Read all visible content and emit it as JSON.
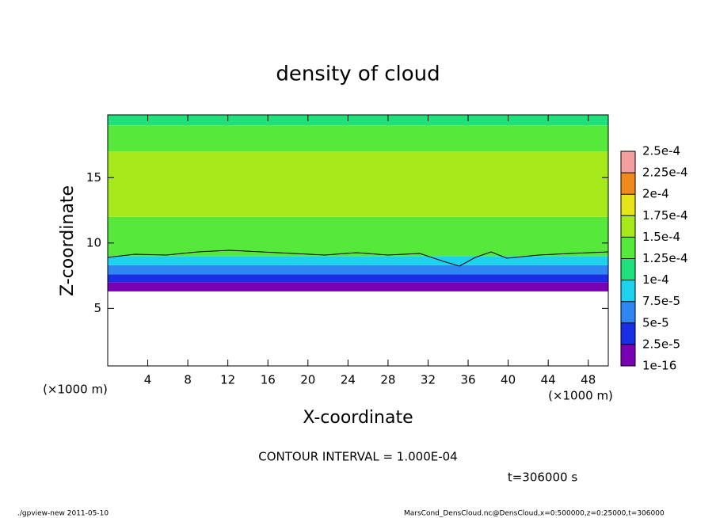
{
  "chart_data": {
    "type": "contour",
    "title": "density of cloud",
    "x_label": "X-coordinate",
    "y_label": "Z-coordinate",
    "x_unit": "(×1000 m)",
    "y_unit": "(×1000 m)",
    "xlim": [
      0,
      50
    ],
    "ylim": [
      0.6,
      19.8
    ],
    "xticks": [
      4,
      8,
      12,
      16,
      20,
      24,
      28,
      32,
      36,
      40,
      44,
      48
    ],
    "yticks": [
      5,
      10,
      15
    ],
    "z_edges": [
      6.3,
      7.0,
      7.6,
      8.3,
      9.0,
      12.0,
      17.0,
      19.0,
      19.8
    ],
    "values": [
      1e-05,
      3.5e-05,
      6e-05,
      9e-05,
      0.000145,
      0.000155,
      0.00014,
      0.00011
    ],
    "colorbar": {
      "ticks": [
        {
          "value": 1e-16,
          "label": "1e-16"
        },
        {
          "value": 2.5e-05,
          "label": "2.5e-5"
        },
        {
          "value": 5e-05,
          "label": "5e-5"
        },
        {
          "value": 7.5e-05,
          "label": "7.5e-5"
        },
        {
          "value": 0.0001,
          "label": "1e-4"
        },
        {
          "value": 0.000125,
          "label": "1.25e-4"
        },
        {
          "value": 0.00015,
          "label": "1.5e-4"
        },
        {
          "value": 0.000175,
          "label": "1.75e-4"
        },
        {
          "value": 0.0002,
          "label": "2e-4"
        },
        {
          "value": 0.000225,
          "label": "2.25e-4"
        },
        {
          "value": 0.00025,
          "label": "2.5e-4"
        }
      ],
      "colors": [
        "#7a00b4",
        "#1a2ee6",
        "#2f86f2",
        "#1ed2ee",
        "#20e07c",
        "#56e83a",
        "#a6ea1c",
        "#e8e41a",
        "#f08a1c",
        "#f4a0a0"
      ]
    },
    "contour_interval": "CONTOUR INTERVAL = 1.000E-04",
    "time_label": "t=306000 s",
    "footer_left": "./gpview-new  2011-05-10",
    "footer_right": "MarsCond_DensCloud.nc@DensCloud,x=0:500000,z=0:25000,t=306000"
  }
}
